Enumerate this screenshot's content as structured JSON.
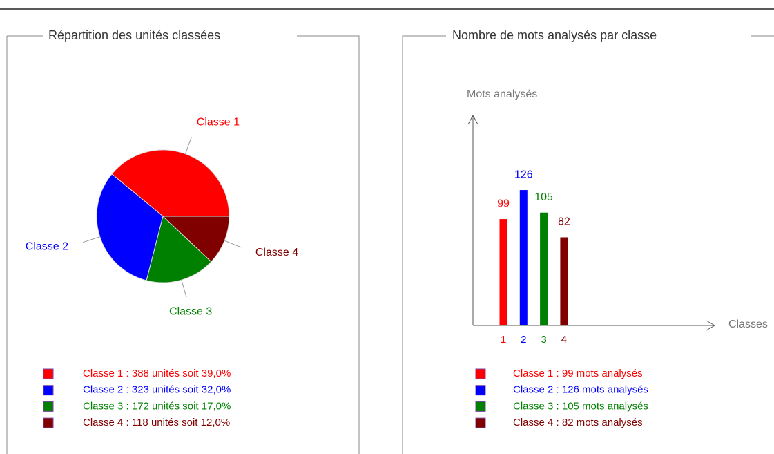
{
  "chart_data": [
    {
      "type": "pie",
      "title": "Répartition des unités classées",
      "categories": [
        "Classe 1",
        "Classe 2",
        "Classe 3",
        "Classe 4"
      ],
      "values": [
        39,
        32,
        17,
        12
      ],
      "colors": [
        "#ff0000",
        "#0000ff",
        "#008000",
        "#800000"
      ],
      "legend": [
        "Classe 1 : 388 unités soit 39,0%",
        "Classe 2 : 323 unités soit 32,0%",
        "Classe 3 : 172 unités soit 17,0%",
        "Classe 4 : 118 unités soit 12,0%"
      ]
    },
    {
      "type": "bar",
      "title": "Nombre de mots analysés par classe",
      "ylabel": "Mots analysés",
      "xlabel": "Classes",
      "categories": [
        "1",
        "2",
        "3",
        "4"
      ],
      "values": [
        99,
        126,
        105,
        82
      ],
      "colors": [
        "#ff0000",
        "#0000ff",
        "#008000",
        "#800000"
      ],
      "ylim": [
        0,
        200
      ],
      "legend": [
        "Classe 1 : 99 mots analysés",
        "Classe 2 : 126 mots analysés",
        "Classe 3 : 105 mots analysés",
        "Classe 4 : 82 mots analysés"
      ]
    }
  ]
}
